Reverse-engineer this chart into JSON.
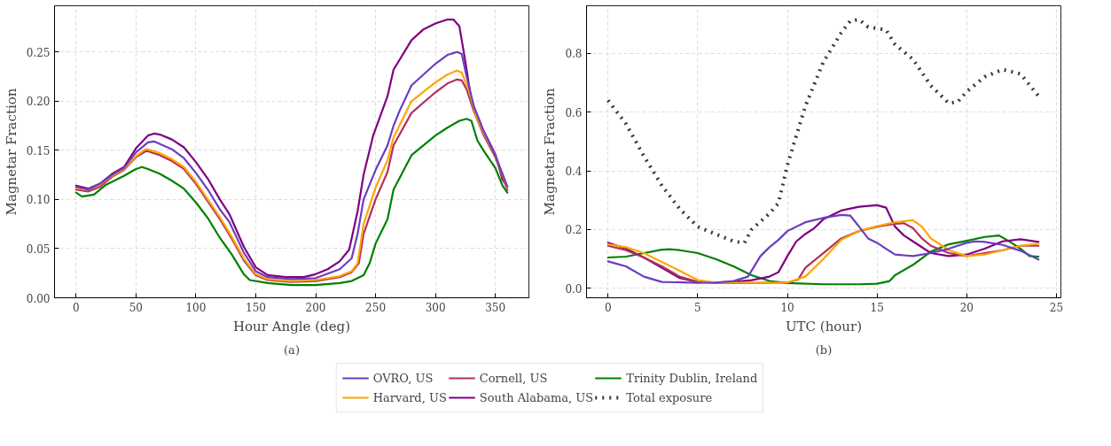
{
  "chart_data": [
    {
      "type": "line",
      "xlabel": "Hour Angle (deg)",
      "ylabel": "Magnetar Fraction",
      "annotations": [
        "(a)"
      ],
      "xlim": [
        -18,
        378
      ],
      "ylim": [
        0,
        0.297
      ],
      "xticks": [
        0,
        50,
        100,
        150,
        200,
        250,
        300,
        350
      ],
      "yticks": [
        {
          "value": 0,
          "label": "0.00"
        },
        {
          "value": 0.05,
          "label": "0.05"
        },
        {
          "value": 0.1,
          "label": "0.10"
        },
        {
          "value": 0.15,
          "label": "0.15"
        },
        {
          "value": 0.2,
          "label": "0.20"
        },
        {
          "value": 0.25,
          "label": "0.25"
        }
      ],
      "grid": true,
      "line_style": "solid",
      "series": [
        {
          "color": "#6a3dc1",
          "x": [
            0,
            10,
            20,
            30,
            40,
            50,
            60,
            65,
            80,
            90,
            100,
            110,
            120,
            128,
            140,
            150,
            160,
            180,
            200,
            220,
            230,
            235,
            240,
            250,
            260,
            265,
            270,
            280,
            300,
            310,
            318,
            322,
            326,
            332,
            340,
            350,
            360
          ],
          "values": [
            0.113,
            0.11,
            0.116,
            0.125,
            0.132,
            0.148,
            0.158,
            0.159,
            0.151,
            0.142,
            0.127,
            0.11,
            0.09,
            0.077,
            0.046,
            0.027,
            0.021,
            0.019,
            0.02,
            0.029,
            0.04,
            0.065,
            0.1,
            0.13,
            0.155,
            0.175,
            0.19,
            0.216,
            0.238,
            0.247,
            0.25,
            0.248,
            0.225,
            0.195,
            0.17,
            0.145,
            0.113
          ]
        },
        {
          "color": "#ffa500",
          "x": [
            0,
            10,
            20,
            30,
            40,
            50,
            58,
            60,
            70,
            80,
            90,
            100,
            110,
            120,
            130,
            140,
            150,
            160,
            180,
            200,
            220,
            230,
            235,
            240,
            250,
            260,
            265,
            280,
            300,
            310,
            318,
            322,
            328,
            334,
            340,
            350,
            360
          ],
          "values": [
            0.112,
            0.11,
            0.115,
            0.124,
            0.131,
            0.144,
            0.151,
            0.151,
            0.147,
            0.141,
            0.133,
            0.118,
            0.1,
            0.082,
            0.062,
            0.04,
            0.024,
            0.019,
            0.017,
            0.018,
            0.022,
            0.027,
            0.035,
            0.075,
            0.112,
            0.14,
            0.163,
            0.2,
            0.219,
            0.227,
            0.231,
            0.229,
            0.21,
            0.185,
            0.168,
            0.145,
            0.112
          ]
        },
        {
          "color": "#b03060",
          "x": [
            0,
            10,
            20,
            30,
            40,
            50,
            58,
            60,
            70,
            80,
            90,
            100,
            110,
            120,
            130,
            140,
            150,
            160,
            180,
            200,
            220,
            230,
            236,
            240,
            250,
            260,
            265,
            280,
            300,
            310,
            318,
            322,
            326,
            332,
            340,
            350,
            360
          ],
          "values": [
            0.11,
            0.108,
            0.113,
            0.123,
            0.13,
            0.143,
            0.149,
            0.149,
            0.145,
            0.139,
            0.131,
            0.116,
            0.098,
            0.08,
            0.06,
            0.038,
            0.023,
            0.018,
            0.016,
            0.017,
            0.021,
            0.026,
            0.035,
            0.065,
            0.1,
            0.128,
            0.155,
            0.188,
            0.209,
            0.218,
            0.222,
            0.221,
            0.212,
            0.19,
            0.166,
            0.143,
            0.11
          ]
        },
        {
          "color": "#800080",
          "x": [
            0,
            10,
            20,
            30,
            40,
            50,
            60,
            65,
            70,
            80,
            90,
            100,
            110,
            120,
            128,
            140,
            150,
            160,
            175,
            190,
            200,
            210,
            220,
            228,
            235,
            240,
            248,
            260,
            265,
            280,
            290,
            300,
            310,
            315,
            320,
            325,
            330,
            340,
            350,
            356,
            360
          ],
          "values": [
            0.114,
            0.111,
            0.116,
            0.126,
            0.133,
            0.152,
            0.165,
            0.167,
            0.166,
            0.161,
            0.153,
            0.138,
            0.121,
            0.1,
            0.085,
            0.052,
            0.031,
            0.023,
            0.021,
            0.021,
            0.024,
            0.029,
            0.037,
            0.049,
            0.088,
            0.125,
            0.165,
            0.205,
            0.232,
            0.262,
            0.273,
            0.279,
            0.283,
            0.283,
            0.276,
            0.24,
            0.2,
            0.17,
            0.146,
            0.12,
            0.113
          ]
        },
        {
          "color": "#008000",
          "x": [
            0,
            5,
            15,
            25,
            30,
            40,
            50,
            55,
            60,
            70,
            80,
            90,
            100,
            110,
            120,
            130,
            140,
            145,
            160,
            180,
            200,
            220,
            230,
            240,
            245,
            250,
            260,
            265,
            280,
            300,
            310,
            320,
            326,
            330,
            335,
            340,
            350,
            356,
            360
          ],
          "values": [
            0.107,
            0.103,
            0.105,
            0.115,
            0.118,
            0.124,
            0.131,
            0.133,
            0.131,
            0.126,
            0.119,
            0.111,
            0.097,
            0.081,
            0.061,
            0.044,
            0.024,
            0.018,
            0.015,
            0.013,
            0.013,
            0.015,
            0.017,
            0.023,
            0.035,
            0.055,
            0.08,
            0.11,
            0.145,
            0.165,
            0.173,
            0.18,
            0.182,
            0.18,
            0.16,
            0.15,
            0.132,
            0.114,
            0.107
          ]
        }
      ]
    },
    {
      "type": "line",
      "xlabel": "UTC (hour)",
      "ylabel": "Magnetar Fraction",
      "annotations": [
        "(b)"
      ],
      "xlim": [
        -1.2,
        25.25
      ],
      "ylim": [
        -0.032,
        0.962
      ],
      "xticks": [
        0,
        5,
        10,
        15,
        20,
        25
      ],
      "yticks": [
        {
          "value": 0,
          "label": "0.0"
        },
        {
          "value": 0.2,
          "label": "0.2"
        },
        {
          "value": 0.4,
          "label": "0.4"
        },
        {
          "value": 0.6,
          "label": "0.6"
        },
        {
          "value": 0.8,
          "label": "0.8"
        }
      ],
      "grid": true,
      "legend": "bottom",
      "series": [
        {
          "name": "OVRO, US",
          "color": "#6a3dc1",
          "line_style": "solid",
          "x": [
            0,
            1,
            2,
            3,
            5,
            6,
            7,
            7.8,
            8.5,
            9,
            9.5,
            10,
            11,
            12,
            13,
            13.5,
            14,
            14.5,
            15,
            15.5,
            16,
            17,
            18,
            19,
            20,
            20.5,
            21,
            22,
            23,
            24
          ],
          "values": [
            0.092,
            0.075,
            0.04,
            0.022,
            0.019,
            0.02,
            0.025,
            0.04,
            0.11,
            0.14,
            0.165,
            0.195,
            0.225,
            0.24,
            0.25,
            0.248,
            0.21,
            0.17,
            0.155,
            0.135,
            0.115,
            0.11,
            0.12,
            0.135,
            0.155,
            0.16,
            0.158,
            0.148,
            0.128,
            0.098
          ]
        },
        {
          "name": "Harvard, US",
          "color": "#ffa500",
          "line_style": "solid",
          "x": [
            0,
            1,
            2,
            3,
            4,
            5,
            6,
            8,
            10,
            11,
            12,
            13,
            14,
            15,
            16,
            17,
            17.5,
            18,
            19,
            20,
            21,
            22,
            23,
            24
          ],
          "values": [
            0.15,
            0.14,
            0.12,
            0.09,
            0.06,
            0.028,
            0.02,
            0.019,
            0.02,
            0.04,
            0.1,
            0.165,
            0.195,
            0.212,
            0.225,
            0.232,
            0.21,
            0.17,
            0.13,
            0.11,
            0.115,
            0.13,
            0.145,
            0.152
          ]
        },
        {
          "name": "Cornell, US",
          "color": "#b03060",
          "line_style": "solid",
          "x": [
            0,
            1,
            2,
            3,
            4,
            5,
            6,
            8,
            10,
            10.6,
            11,
            12,
            13,
            14,
            15,
            16,
            16.5,
            17,
            17.5,
            18,
            19,
            20,
            21,
            22,
            23,
            24
          ],
          "values": [
            0.145,
            0.13,
            0.105,
            0.075,
            0.04,
            0.022,
            0.019,
            0.018,
            0.02,
            0.03,
            0.07,
            0.12,
            0.17,
            0.195,
            0.21,
            0.22,
            0.222,
            0.205,
            0.17,
            0.145,
            0.12,
            0.11,
            0.12,
            0.13,
            0.145,
            0.145
          ]
        },
        {
          "name": "South Alabama, US",
          "color": "#800080",
          "line_style": "solid",
          "x": [
            0,
            1,
            2,
            3,
            4,
            5,
            6,
            7,
            8,
            9,
            9.5,
            10,
            10.5,
            11,
            11.5,
            12,
            13,
            14,
            15,
            15.5,
            16,
            16.5,
            17,
            18,
            19,
            20,
            21,
            22,
            23,
            24
          ],
          "values": [
            0.155,
            0.135,
            0.105,
            0.07,
            0.035,
            0.022,
            0.02,
            0.022,
            0.028,
            0.04,
            0.055,
            0.11,
            0.16,
            0.185,
            0.205,
            0.235,
            0.265,
            0.278,
            0.283,
            0.275,
            0.21,
            0.18,
            0.16,
            0.12,
            0.11,
            0.115,
            0.135,
            0.16,
            0.167,
            0.158
          ]
        },
        {
          "name": "Trinity Dublin, Ireland",
          "color": "#008000",
          "line_style": "solid",
          "x": [
            0,
            1,
            2,
            3,
            3.5,
            4,
            5,
            6,
            7,
            8,
            9,
            10,
            12,
            14,
            15,
            15.7,
            16,
            17,
            18,
            19,
            20,
            21,
            21.8,
            22.5,
            23,
            23.5,
            24
          ],
          "values": [
            0.105,
            0.108,
            0.12,
            0.132,
            0.133,
            0.13,
            0.12,
            0.1,
            0.075,
            0.045,
            0.025,
            0.018,
            0.014,
            0.014,
            0.016,
            0.025,
            0.045,
            0.08,
            0.125,
            0.15,
            0.162,
            0.175,
            0.18,
            0.155,
            0.135,
            0.11,
            0.108
          ]
        },
        {
          "name": "Total exposure",
          "color": "#333333",
          "line_style": "dotted",
          "x": [
            0,
            1,
            2,
            3,
            4,
            5,
            6,
            7,
            7.6,
            8,
            9,
            9.5,
            10,
            11,
            12,
            13,
            13.5,
            14,
            14.5,
            15.5,
            16,
            17,
            18,
            19,
            19.5,
            20,
            21,
            22,
            23,
            24
          ],
          "values": [
            0.64,
            0.56,
            0.45,
            0.35,
            0.27,
            0.21,
            0.185,
            0.16,
            0.155,
            0.2,
            0.255,
            0.29,
            0.42,
            0.62,
            0.77,
            0.87,
            0.91,
            0.915,
            0.89,
            0.88,
            0.83,
            0.78,
            0.69,
            0.63,
            0.635,
            0.67,
            0.72,
            0.745,
            0.73,
            0.655
          ]
        }
      ]
    }
  ]
}
